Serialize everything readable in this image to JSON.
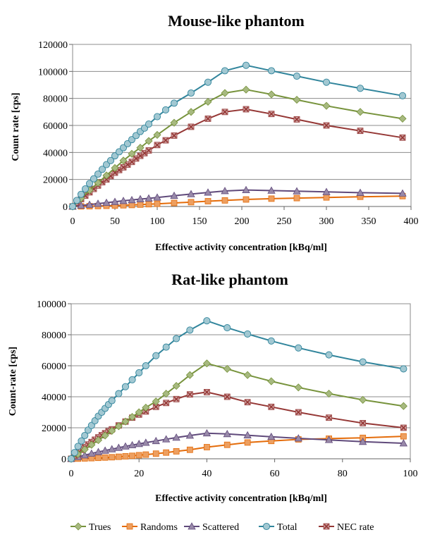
{
  "legend": {
    "placement": "bottom",
    "items": [
      {
        "name": "Trues",
        "color": "#77933C",
        "marker": "diamond"
      },
      {
        "name": "Randoms",
        "color": "#E46C0A",
        "marker": "square"
      },
      {
        "name": "Scattered",
        "color": "#604A7B",
        "marker": "triangle"
      },
      {
        "name": "Total",
        "color": "#31859C",
        "marker": "circle"
      },
      {
        "name": "NEC rate",
        "color": "#953735",
        "marker": "x"
      }
    ]
  },
  "chart_data": [
    {
      "type": "line",
      "title": "Mouse-like phantom",
      "xlabel": "Effective activity concentration [kBq/ml]",
      "ylabel": "Count rate [cps]",
      "xlim": [
        0,
        400
      ],
      "ylim": [
        0,
        120000
      ],
      "xticks": [
        0,
        50,
        100,
        150,
        200,
        250,
        300,
        350,
        400
      ],
      "yticks": [
        0,
        20000,
        40000,
        60000,
        80000,
        100000,
        120000
      ],
      "grid": true,
      "series": [
        {
          "name": "Trues",
          "x": [
            0,
            10,
            20,
            30,
            40,
            50,
            60,
            70,
            80,
            90,
            100,
            120,
            140,
            160,
            180,
            205,
            235,
            265,
            300,
            340,
            390
          ],
          "y": [
            0,
            6000,
            12000,
            17500,
            23000,
            28500,
            34000,
            39000,
            43500,
            48500,
            53000,
            62000,
            70000,
            77500,
            84000,
            86500,
            83000,
            79000,
            74500,
            70000,
            65000
          ]
        },
        {
          "name": "Randoms",
          "x": [
            0,
            10,
            20,
            30,
            40,
            50,
            60,
            70,
            80,
            90,
            100,
            120,
            140,
            160,
            180,
            205,
            235,
            265,
            300,
            340,
            390
          ],
          "y": [
            0,
            100,
            200,
            350,
            500,
            700,
            900,
            1100,
            1400,
            1700,
            2000,
            2600,
            3200,
            3900,
            4500,
            5200,
            5800,
            6200,
            6700,
            7200,
            7700
          ]
        },
        {
          "name": "Scattered",
          "x": [
            0,
            10,
            20,
            30,
            40,
            50,
            60,
            70,
            80,
            90,
            100,
            120,
            140,
            160,
            180,
            205,
            235,
            265,
            300,
            340,
            390
          ],
          "y": [
            0,
            700,
            1400,
            2100,
            2800,
            3500,
            4200,
            4800,
            5500,
            6000,
            6700,
            8000,
            9200,
            10400,
            11500,
            12200,
            11800,
            11300,
            10800,
            10200,
            9700
          ]
        },
        {
          "name": "Total",
          "x": [
            0,
            5,
            10,
            15,
            20,
            25,
            30,
            35,
            40,
            45,
            50,
            55,
            60,
            65,
            70,
            75,
            80,
            85,
            90,
            100,
            110,
            120,
            140,
            160,
            180,
            205,
            235,
            265,
            300,
            340,
            390
          ],
          "y": [
            0,
            4500,
            9000,
            13000,
            17000,
            20500,
            24000,
            27500,
            31000,
            34000,
            37500,
            40500,
            43500,
            46500,
            49500,
            52500,
            55500,
            58000,
            61000,
            66500,
            71500,
            76500,
            84000,
            92000,
            100500,
            104500,
            100500,
            96500,
            92000,
            87500,
            82000
          ]
        },
        {
          "name": "NEC rate",
          "x": [
            0,
            5,
            10,
            15,
            20,
            25,
            30,
            35,
            40,
            45,
            50,
            55,
            60,
            65,
            70,
            75,
            80,
            85,
            90,
            100,
            110,
            120,
            140,
            160,
            180,
            205,
            235,
            265,
            300,
            340,
            390
          ],
          "y": [
            0,
            3000,
            5500,
            8000,
            10500,
            13000,
            15500,
            18000,
            20000,
            22500,
            25000,
            27000,
            29000,
            31000,
            33000,
            35500,
            37500,
            39500,
            41500,
            45500,
            49000,
            52500,
            59000,
            65000,
            70000,
            72000,
            68500,
            64500,
            60000,
            56000,
            51000
          ]
        }
      ]
    },
    {
      "type": "line",
      "title": "Rat-like phantom",
      "xlabel": "Effective activity concentration [kBq/ml]",
      "ylabel": "Count-rate [cps]",
      "xlim": [
        0,
        100
      ],
      "ylim": [
        0,
        100000
      ],
      "xticks": [
        0,
        20,
        40,
        60,
        80,
        100
      ],
      "yticks": [
        0,
        20000,
        40000,
        60000,
        80000,
        100000
      ],
      "grid": true,
      "series": [
        {
          "name": "Trues",
          "x": [
            0,
            2,
            4,
            6,
            8,
            10,
            12,
            14,
            16,
            18,
            20,
            22,
            25,
            28,
            31,
            35,
            40,
            46,
            52,
            59,
            67,
            76,
            86,
            98
          ],
          "y": [
            0,
            3000,
            6000,
            9000,
            12000,
            15000,
            18000,
            21000,
            24000,
            27000,
            30000,
            33000,
            37000,
            42000,
            47000,
            54000,
            61500,
            58000,
            54000,
            50000,
            46000,
            42000,
            38000,
            34000
          ]
        },
        {
          "name": "Randoms",
          "x": [
            0,
            2,
            4,
            6,
            8,
            10,
            12,
            14,
            16,
            18,
            20,
            22,
            25,
            28,
            31,
            35,
            40,
            46,
            52,
            59,
            67,
            76,
            86,
            98
          ],
          "y": [
            0,
            100,
            250,
            400,
            600,
            800,
            1000,
            1300,
            1600,
            1900,
            2300,
            2700,
            3300,
            4000,
            4800,
            5800,
            7500,
            9000,
            10500,
            11500,
            12500,
            13000,
            13500,
            14500
          ]
        },
        {
          "name": "Scattered",
          "x": [
            0,
            2,
            4,
            6,
            8,
            10,
            12,
            14,
            16,
            18,
            20,
            22,
            25,
            28,
            31,
            35,
            40,
            46,
            52,
            59,
            67,
            76,
            86,
            98
          ],
          "y": [
            0,
            1200,
            2300,
            3400,
            4400,
            5300,
            6200,
            7100,
            8000,
            8800,
            9600,
            10400,
            11500,
            12600,
            13700,
            15000,
            16500,
            16000,
            15200,
            14200,
            13200,
            12200,
            11000,
            10000
          ]
        },
        {
          "name": "Total",
          "x": [
            0,
            1,
            2,
            3,
            4,
            5,
            6,
            7,
            8,
            9,
            10,
            11,
            12,
            14,
            16,
            18,
            20,
            22,
            25,
            28,
            31,
            35,
            40,
            46,
            52,
            59,
            67,
            76,
            86,
            98
          ],
          "y": [
            0,
            4000,
            8000,
            11500,
            15000,
            18500,
            21500,
            24500,
            27500,
            30000,
            32500,
            35000,
            37500,
            42000,
            46500,
            51000,
            55500,
            60000,
            66500,
            72000,
            77500,
            83000,
            89000,
            84500,
            80500,
            76000,
            71500,
            67000,
            62500,
            58000
          ]
        },
        {
          "name": "NEC rate",
          "x": [
            0,
            1,
            2,
            3,
            4,
            5,
            6,
            7,
            8,
            9,
            10,
            11,
            12,
            14,
            16,
            18,
            20,
            22,
            25,
            28,
            31,
            35,
            40,
            46,
            52,
            59,
            67,
            76,
            86,
            98
          ],
          "y": [
            0,
            2000,
            4000,
            5800,
            7500,
            9200,
            10800,
            12300,
            13800,
            15200,
            16500,
            17800,
            19000,
            21500,
            24000,
            26500,
            28500,
            30500,
            33500,
            36000,
            38500,
            41500,
            43000,
            40000,
            36500,
            33500,
            30000,
            26500,
            23000,
            20000
          ]
        }
      ]
    }
  ]
}
